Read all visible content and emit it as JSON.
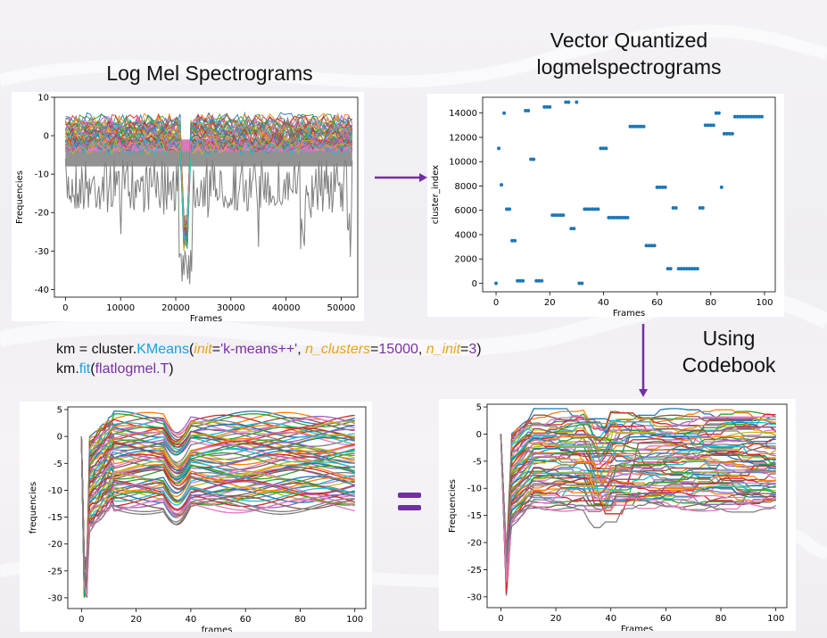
{
  "titles": {
    "top_left": "Log Mel Spectrograms",
    "top_right_line1": "Vector Quantized",
    "top_right_line2": "logmelspectrograms",
    "side_line1": "Using",
    "side_line2": "Codebook"
  },
  "code": {
    "line1_a": "km = cluster.",
    "line1_b": "KMeans",
    "line1_c": "(",
    "line1_d": "init",
    "line1_e": "=",
    "line1_f": "'k-means++'",
    "line1_g": ", ",
    "line1_h": "n_clusters",
    "line1_i": "=",
    "line1_j": "15000",
    "line1_k": ", ",
    "line1_l": "n_init",
    "line1_m": "=",
    "line1_n": "3",
    "line1_o": ")",
    "line2_a": "km.",
    "line2_b": "fit",
    "line2_c": "(",
    "line2_d": "flatlogmel.T",
    "line2_e": ")"
  },
  "equals_sign": "=",
  "colors": {
    "arrow": "#7030a0",
    "equals": "#7030a0",
    "scatter": "#1f77b4",
    "gray": "#7f7f7f",
    "pink": "#e377c2"
  },
  "chart_data": [
    {
      "id": "log-mel",
      "type": "line",
      "xlabel": "Frames",
      "ylabel": "Frequencies",
      "xticks": [
        "0",
        "10000",
        "20000",
        "30000",
        "40000",
        "50000"
      ],
      "yticks": [
        "10",
        "0",
        "-10",
        "-20",
        "-30",
        "-40"
      ],
      "xlim": [
        -2000,
        53000
      ],
      "ylim": [
        -42,
        10
      ]
    },
    {
      "id": "vq-scatter",
      "type": "scatter",
      "xlabel": "Frames",
      "ylabel": "cluster_index",
      "xticks": [
        "0",
        "20",
        "40",
        "60",
        "80",
        "100"
      ],
      "yticks": [
        "14000",
        "12000",
        "10000",
        "8000",
        "6000",
        "4000",
        "2000",
        "0"
      ],
      "xlim": [
        -5,
        104
      ],
      "ylim": [
        -700,
        15300
      ],
      "x": [
        0,
        1,
        2,
        3,
        4,
        5,
        6,
        7,
        8,
        9,
        10,
        11,
        12,
        13,
        14,
        15,
        16,
        17,
        18,
        19,
        20,
        21,
        22,
        23,
        24,
        25,
        26,
        27,
        28,
        29,
        30,
        31,
        32,
        33,
        34,
        35,
        36,
        37,
        38,
        39,
        40,
        41,
        42,
        43,
        44,
        45,
        46,
        47,
        48,
        49,
        50,
        51,
        52,
        53,
        54,
        55,
        56,
        57,
        58,
        59,
        60,
        61,
        62,
        63,
        64,
        65,
        66,
        67,
        68,
        69,
        70,
        71,
        72,
        73,
        74,
        75,
        76,
        77,
        78,
        79,
        80,
        81,
        82,
        83,
        84,
        85,
        86,
        87,
        88,
        89,
        90,
        91,
        92,
        93,
        94,
        95,
        96,
        97,
        98,
        99
      ],
      "y": [
        0,
        11100,
        8100,
        14000,
        6100,
        6100,
        3500,
        3500,
        200,
        200,
        200,
        14200,
        14200,
        10200,
        10200,
        200,
        200,
        200,
        14500,
        14500,
        14500,
        5600,
        5600,
        5600,
        5600,
        5600,
        14900,
        14900,
        4500,
        4500,
        14900,
        0,
        0,
        6100,
        6100,
        6100,
        6100,
        6100,
        6100,
        11100,
        11100,
        11100,
        5400,
        5400,
        5400,
        5400,
        5400,
        5400,
        5400,
        5400,
        12900,
        12900,
        12900,
        12900,
        12900,
        12900,
        3100,
        3100,
        3100,
        3100,
        7900,
        7900,
        7900,
        7900,
        1200,
        1200,
        6200,
        6200,
        1200,
        1200,
        1200,
        1200,
        1200,
        1200,
        1200,
        1200,
        6200,
        6200,
        13000,
        13000,
        13000,
        13000,
        14000,
        14000,
        7900,
        12300,
        12300,
        12300,
        12300,
        13700,
        13700,
        13700,
        13700,
        13700,
        13700,
        13700,
        13700,
        13700,
        13700,
        13700
      ]
    },
    {
      "id": "frames-lines",
      "type": "line",
      "xlabel": "frames",
      "ylabel": "frequencies",
      "xticks": [
        "0",
        "20",
        "40",
        "60",
        "80",
        "100"
      ],
      "yticks": [
        "5",
        "0",
        "-5",
        "-10",
        "-15",
        "-20",
        "-25",
        "-30"
      ],
      "xlim": [
        -5,
        104
      ],
      "ylim": [
        -32,
        5.5
      ]
    },
    {
      "id": "codebook-lines",
      "type": "line",
      "xlabel": "Frames",
      "ylabel": "Frequencies",
      "xticks": [
        "0",
        "20",
        "40",
        "60",
        "80",
        "100"
      ],
      "yticks": [
        "5",
        "0",
        "-5",
        "-10",
        "-15",
        "-20",
        "-25",
        "-30"
      ],
      "xlim": [
        -5,
        104
      ],
      "ylim": [
        -32,
        5.5
      ]
    }
  ]
}
